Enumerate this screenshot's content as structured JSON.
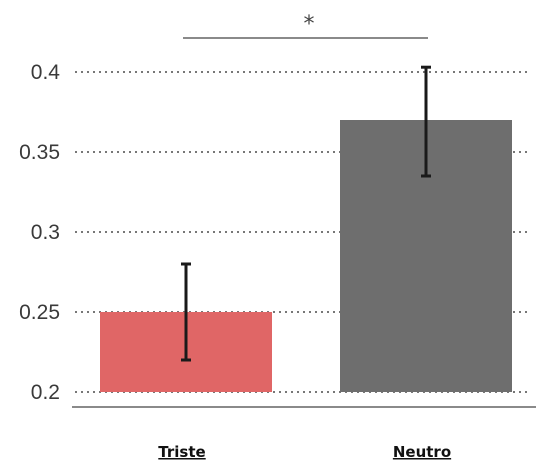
{
  "chart_data": {
    "type": "bar",
    "title": "",
    "xlabel": "",
    "ylabel": "",
    "categories": [
      "Triste",
      "Neutro"
    ],
    "values": [
      0.25,
      0.37
    ],
    "error_low": [
      0.22,
      0.335
    ],
    "error_high": [
      0.28,
      0.403
    ],
    "colors": [
      "#e06666",
      "#6e6e6e"
    ],
    "ylim": [
      0.2,
      0.4
    ],
    "yticks": [
      0.2,
      0.25,
      0.3,
      0.35,
      0.4
    ],
    "ytick_labels": [
      "0.2",
      "0.25",
      "0.3",
      "0.35",
      "0.4"
    ],
    "grid": true,
    "significance": {
      "between": [
        "Triste",
        "Neutro"
      ],
      "label": "*"
    }
  }
}
